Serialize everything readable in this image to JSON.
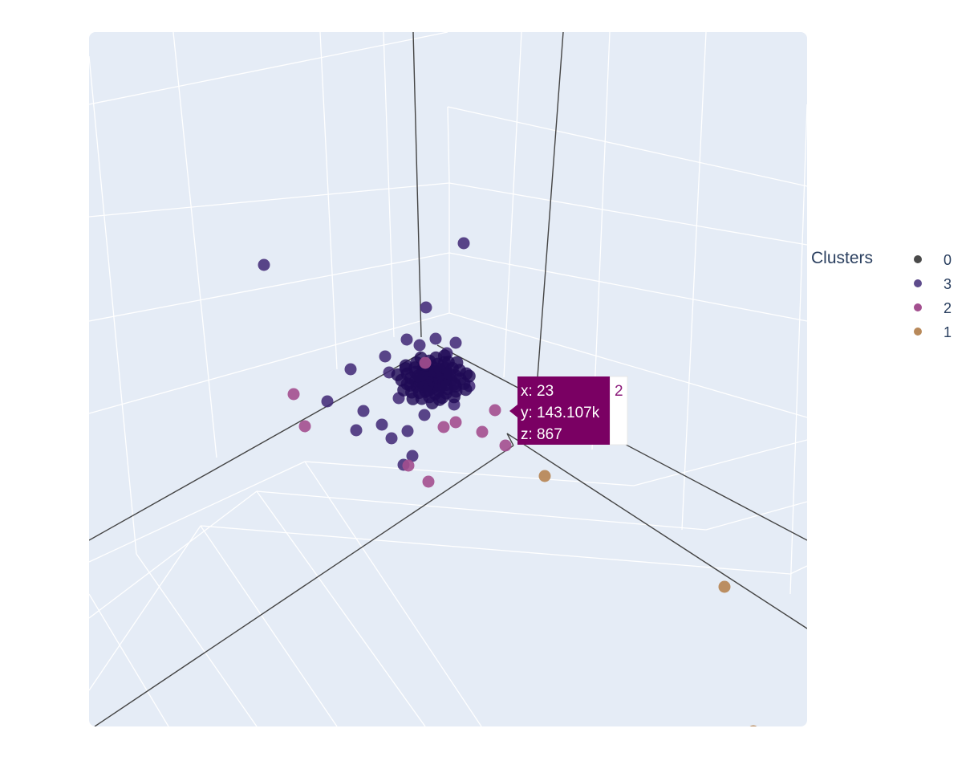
{
  "chart_data": {
    "type": "scatter",
    "title": "",
    "background_color": "#e5ecf6",
    "grid_color": "#ffffff",
    "axis_line_color": "#444444",
    "legend": {
      "title": "Clusters",
      "placement": "right",
      "items": [
        {
          "name": "0",
          "color": "#4a4a4a"
        },
        {
          "name": "3",
          "color": "#5e4b8c"
        },
        {
          "name": "2",
          "color": "#a34f8f"
        },
        {
          "name": "1",
          "color": "#b8895a"
        }
      ]
    },
    "series": [
      {
        "name": "0",
        "color": "#4a4a4a",
        "marker": "circle",
        "points": []
      },
      {
        "name": "3",
        "color": "#3f2774",
        "marker": "circle",
        "note_density": "dense core"
      },
      {
        "name": "2",
        "color": "#a34f8f",
        "marker": "circle"
      },
      {
        "name": "1",
        "color": "#b8895a",
        "marker": "circle"
      }
    ],
    "hover": {
      "x_text": "x: 23",
      "y_text": "y: 143.107k",
      "z_text": "z: 867",
      "series_name": "2",
      "background": "#7a0063",
      "name_color": "#8b1a7a"
    }
  }
}
